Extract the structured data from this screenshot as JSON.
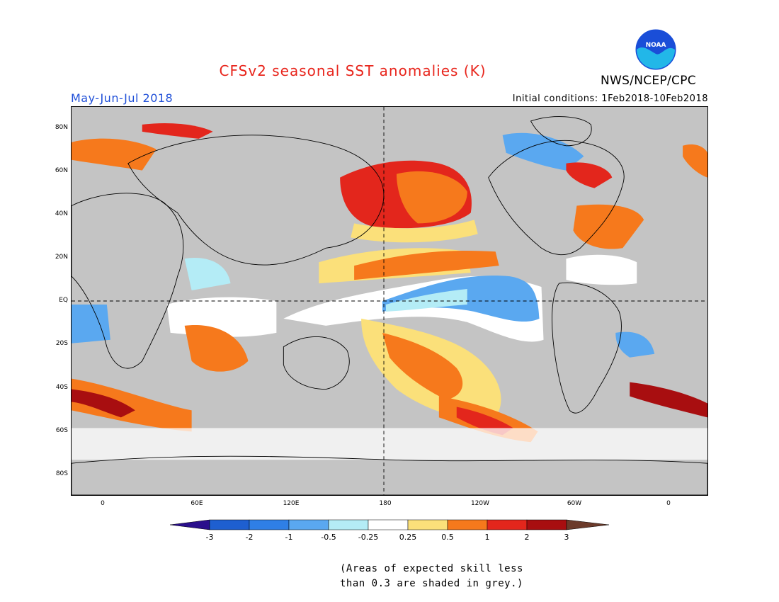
{
  "title": "CFSv2 seasonal SST anomalies (K)",
  "season": "May-Jun-Jul 2018",
  "initial_conditions": "Initial conditions: 1Feb2018-10Feb2018",
  "agency": "NWS/NCEP/CPC",
  "logo_text": "NOAA",
  "lat_ticks": [
    "80N",
    "60N",
    "40N",
    "20N",
    "EQ",
    "20S",
    "40S",
    "60S",
    "80S"
  ],
  "lon_ticks": [
    "0",
    "60E",
    "120E",
    "180",
    "120W",
    "60W",
    "0"
  ],
  "colorbar_labels": [
    "-3",
    "-2",
    "-1",
    "-0.5",
    "-0.25",
    "0.25",
    "0.5",
    "1",
    "2",
    "3"
  ],
  "colorbar_colors": [
    "#2a0f8c",
    "#1e5fd0",
    "#2f7fe6",
    "#5aa8f0",
    "#b4ecf6",
    "#ffffff",
    "#fbe07a",
    "#f6791c",
    "#e3261c",
    "#a80e10",
    "#6b3a2a"
  ],
  "colors": {
    "grey": "#c4c4c4",
    "white": "#ffffff",
    "light_yellow": "#fbe07a",
    "orange": "#f6791c",
    "red": "#e3261c",
    "dark_red": "#a80e10",
    "light_blue": "#b4ecf6",
    "mid_blue": "#5aa8f0",
    "blue": "#2f7fe6"
  },
  "note_line1": "(Areas of expected skill less",
  "note_line2": "than 0.3 are shaded in grey.)"
}
